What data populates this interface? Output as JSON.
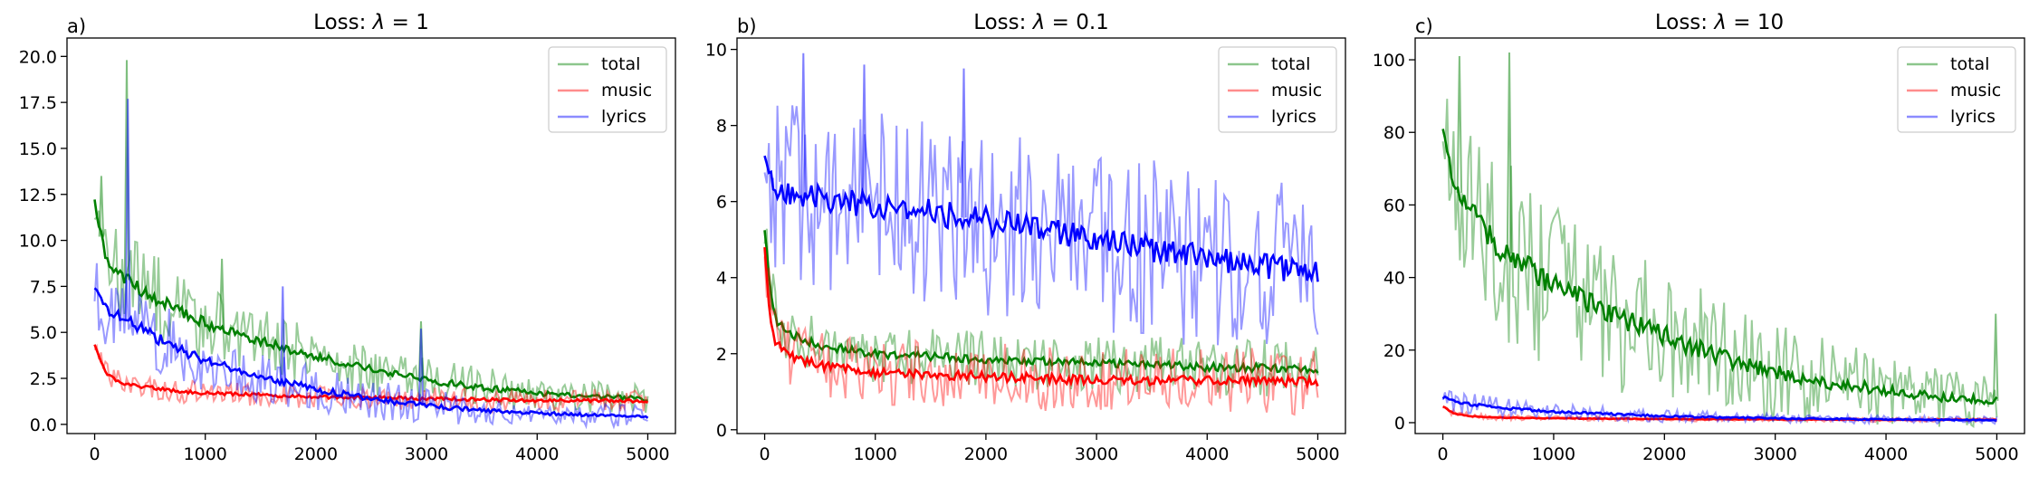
{
  "figure": {
    "panels": [
      {
        "panel_label": "a)",
        "title_prefix": "Loss: ",
        "title_symbol": "λ",
        "title_suffix": " = 1"
      },
      {
        "panel_label": "b)",
        "title_prefix": "Loss: ",
        "title_symbol": "λ",
        "title_suffix": " = 0.1"
      },
      {
        "panel_label": "c)",
        "title_prefix": "Loss: ",
        "title_symbol": "λ",
        "title_suffix": " = 10"
      }
    ]
  },
  "chart_data": [
    {
      "type": "line",
      "title": "Loss: λ = 1",
      "panel_label": "a)",
      "xlabel": "",
      "ylabel": "",
      "xlim": [
        0,
        5000
      ],
      "ylim": [
        -0.5,
        21
      ],
      "xticks": [
        0,
        1000,
        2000,
        3000,
        4000,
        5000
      ],
      "yticks": [
        0.0,
        2.5,
        5.0,
        7.5,
        10.0,
        12.5,
        15.0,
        17.5,
        20.0
      ],
      "ytick_labels": [
        "0.0",
        "2.5",
        "5.0",
        "7.5",
        "10.0",
        "12.5",
        "15.0",
        "17.5",
        "20.0"
      ],
      "legend_position": "top-right",
      "grid": false,
      "series": [
        {
          "name": "total",
          "color": "#008000",
          "x": [
            0,
            100,
            250,
            500,
            750,
            1000,
            1500,
            2000,
            2500,
            3000,
            3500,
            4000,
            4500,
            5000
          ],
          "smooth": [
            12.0,
            9.0,
            8.0,
            7.0,
            6.2,
            5.5,
            4.5,
            3.7,
            3.0,
            2.4,
            2.0,
            1.7,
            1.5,
            1.4
          ],
          "band": [
            1.6,
            1.6,
            2.0,
            2.0,
            1.8,
            1.6,
            1.4,
            1.2,
            1.1,
            1.0,
            0.9,
            0.8,
            0.7,
            0.7
          ],
          "spikes": [
            {
              "x": 290,
              "y": 19.8
            },
            {
              "x": 60,
              "y": 13.5
            },
            {
              "x": 1150,
              "y": 9.0
            },
            {
              "x": 2950,
              "y": 5.6
            }
          ]
        },
        {
          "name": "music",
          "color": "#ff0000",
          "x": [
            0,
            100,
            250,
            500,
            750,
            1000,
            1500,
            2000,
            2500,
            3000,
            3500,
            4000,
            4500,
            5000
          ],
          "smooth": [
            4.3,
            2.8,
            2.2,
            2.0,
            1.8,
            1.7,
            1.6,
            1.5,
            1.45,
            1.4,
            1.35,
            1.3,
            1.3,
            1.25
          ],
          "band": [
            0.5,
            0.5,
            0.5,
            0.5,
            0.5,
            0.5,
            0.5,
            0.5,
            0.5,
            0.5,
            0.5,
            0.5,
            0.5,
            0.5
          ],
          "spikes": []
        },
        {
          "name": "lyrics",
          "color": "#0000ff",
          "x": [
            0,
            100,
            250,
            500,
            750,
            1000,
            1500,
            2000,
            2500,
            3000,
            3500,
            4000,
            4500,
            5000
          ],
          "smooth": [
            7.4,
            6.3,
            5.8,
            4.9,
            4.1,
            3.5,
            2.6,
            1.9,
            1.4,
            1.0,
            0.75,
            0.6,
            0.5,
            0.4
          ],
          "band": [
            1.5,
            1.6,
            1.8,
            1.7,
            1.6,
            1.4,
            1.2,
            1.0,
            0.9,
            0.8,
            0.6,
            0.5,
            0.5,
            0.5
          ],
          "spikes": [
            {
              "x": 300,
              "y": 17.7
            },
            {
              "x": 1700,
              "y": 7.5
            },
            {
              "x": 2950,
              "y": 5.2
            }
          ]
        }
      ]
    },
    {
      "type": "line",
      "title": "Loss: λ = 0.1",
      "panel_label": "b)",
      "xlabel": "",
      "ylabel": "",
      "xlim": [
        0,
        5000
      ],
      "ylim": [
        -0.1,
        10.3
      ],
      "xticks": [
        0,
        1000,
        2000,
        3000,
        4000,
        5000
      ],
      "yticks": [
        0,
        2,
        4,
        6,
        8,
        10
      ],
      "ytick_labels": [
        "0",
        "2",
        "4",
        "6",
        "8",
        "10"
      ],
      "legend_position": "top-right",
      "grid": false,
      "series": [
        {
          "name": "total",
          "color": "#008000",
          "x": [
            0,
            50,
            100,
            250,
            500,
            1000,
            2000,
            3000,
            4000,
            5000
          ],
          "smooth": [
            5.2,
            3.6,
            2.9,
            2.5,
            2.2,
            2.0,
            1.85,
            1.75,
            1.65,
            1.6
          ],
          "band": [
            0.7,
            0.8,
            0.7,
            0.6,
            0.6,
            0.6,
            0.6,
            0.6,
            0.6,
            0.6
          ],
          "spikes": []
        },
        {
          "name": "music",
          "color": "#ff0000",
          "x": [
            0,
            50,
            100,
            250,
            500,
            1000,
            2000,
            3000,
            4000,
            5000
          ],
          "smooth": [
            4.8,
            3.0,
            2.3,
            1.9,
            1.7,
            1.5,
            1.4,
            1.3,
            1.3,
            1.25
          ],
          "band": [
            0.6,
            0.7,
            0.7,
            0.7,
            0.7,
            0.7,
            0.7,
            0.7,
            0.7,
            0.7
          ],
          "spikes": []
        },
        {
          "name": "lyrics",
          "color": "#0000ff",
          "x": [
            0,
            50,
            100,
            250,
            500,
            1000,
            2000,
            3000,
            4000,
            5000
          ],
          "smooth": [
            7.3,
            6.8,
            6.4,
            6.2,
            6.1,
            5.9,
            5.5,
            5.0,
            4.5,
            4.1
          ],
          "band": [
            1.4,
            1.6,
            1.8,
            1.9,
            2.0,
            2.0,
            2.0,
            2.0,
            1.9,
            1.8
          ],
          "spikes": [
            {
              "x": 350,
              "y": 9.9
            },
            {
              "x": 1800,
              "y": 9.5
            },
            {
              "x": 900,
              "y": 9.6
            }
          ]
        }
      ]
    },
    {
      "type": "line",
      "title": "Loss: λ = 10",
      "panel_label": "c)",
      "xlabel": "",
      "ylabel": "",
      "xlim": [
        0,
        5000
      ],
      "ylim": [
        -3,
        106
      ],
      "xticks": [
        0,
        1000,
        2000,
        3000,
        4000,
        5000
      ],
      "yticks": [
        0,
        20,
        40,
        60,
        80,
        100
      ],
      "ytick_labels": [
        "0",
        "20",
        "40",
        "60",
        "80",
        "100"
      ],
      "legend_position": "top-right",
      "grid": false,
      "series": [
        {
          "name": "total",
          "color": "#008000",
          "x": [
            0,
            100,
            250,
            500,
            750,
            1000,
            1500,
            2000,
            2500,
            3000,
            3500,
            4000,
            4500,
            5000
          ],
          "smooth": [
            81,
            66,
            58,
            49,
            43,
            38,
            30,
            24,
            18,
            14,
            11,
            9,
            7,
            6
          ],
          "band": [
            10,
            14,
            18,
            20,
            20,
            19,
            17,
            15,
            13,
            11,
            10,
            8,
            7,
            6
          ],
          "spikes": [
            {
              "x": 150,
              "y": 101
            },
            {
              "x": 600,
              "y": 102
            },
            {
              "x": 4990,
              "y": 30
            }
          ]
        },
        {
          "name": "music",
          "color": "#ff0000",
          "x": [
            0,
            100,
            250,
            500,
            1000,
            2000,
            3000,
            4000,
            5000
          ],
          "smooth": [
            4.5,
            2.5,
            1.8,
            1.4,
            1.2,
            1.0,
            0.9,
            0.8,
            0.8
          ],
          "band": [
            1.0,
            0.8,
            0.7,
            0.6,
            0.6,
            0.5,
            0.5,
            0.5,
            0.5
          ],
          "spikes": []
        },
        {
          "name": "lyrics",
          "color": "#0000ff",
          "x": [
            0,
            100,
            250,
            500,
            1000,
            2000,
            3000,
            4000,
            5000
          ],
          "smooth": [
            7.0,
            6.0,
            5.0,
            4.2,
            3.0,
            1.8,
            1.2,
            0.9,
            0.7
          ],
          "band": [
            2.5,
            2.5,
            2.5,
            2.2,
            1.8,
            1.4,
            1.1,
            0.9,
            0.8
          ],
          "spikes": []
        }
      ]
    }
  ]
}
